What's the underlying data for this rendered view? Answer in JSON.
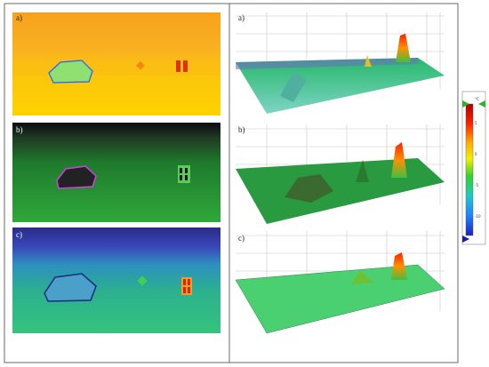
{
  "left_panels": [
    {
      "label": "a)"
    },
    {
      "label": "b)"
    },
    {
      "label": "c)"
    }
  ],
  "right_panels": [
    {
      "label": "a)"
    },
    {
      "label": "b)"
    },
    {
      "label": "c)"
    }
  ],
  "colorbar": {
    "unit": "°C",
    "tick_labels": [
      "5",
      "0",
      "-5",
      "-10"
    ]
  }
}
